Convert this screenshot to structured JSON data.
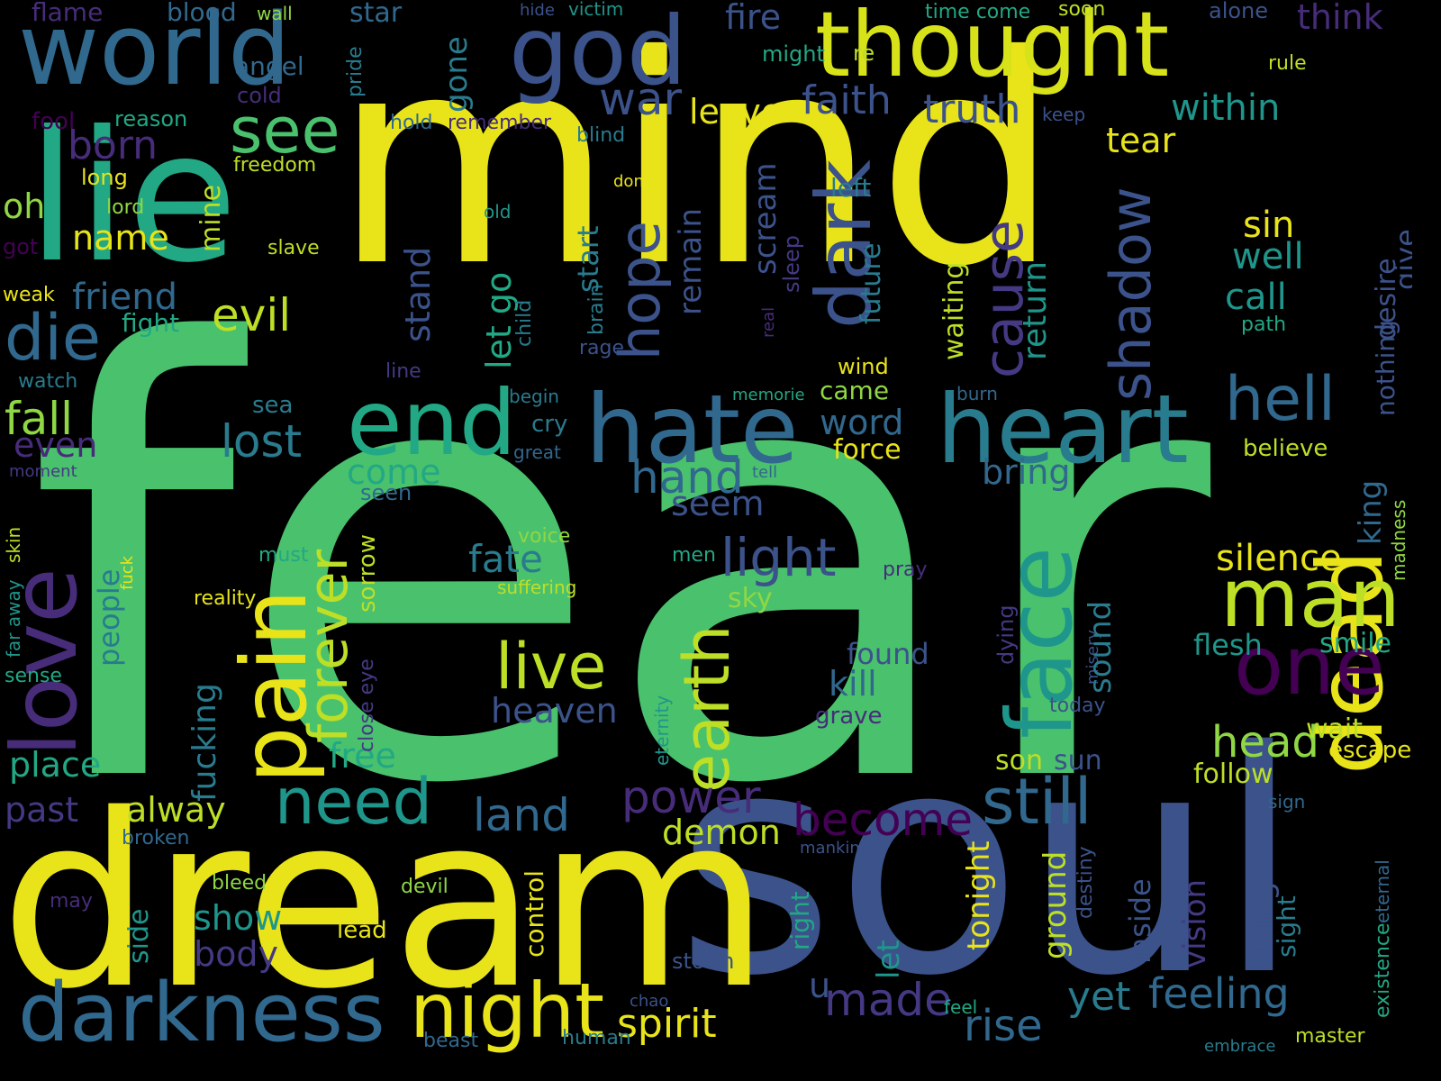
{
  "palette": {
    "background": "#000000",
    "yellow": "#e8e419",
    "yellow_green": "#bddf26",
    "lime": "#8fd744",
    "green": "#4ac16d",
    "teal_green": "#22a884",
    "teal": "#1f968b",
    "cyan_blue": "#297b8e",
    "blue": "#31688e",
    "slate": "#3b528b",
    "indigo": "#443983",
    "violet": "#472c7a",
    "purple": "#440154"
  },
  "words": [
    {
      "text": "fear",
      "color": "#4ac16d"
    },
    {
      "text": "mind",
      "color": "#e8e419"
    },
    {
      "text": "soul",
      "color": "#3b528b"
    },
    {
      "text": "dream",
      "color": "#e8e419"
    },
    {
      "text": "lie",
      "color": "#22a884"
    },
    {
      "text": "world",
      "color": "#31688e"
    },
    {
      "text": "thought",
      "color": "#d8e219"
    },
    {
      "text": "god",
      "color": "#3b528b"
    },
    {
      "text": "hate",
      "color": "#31688e"
    },
    {
      "text": "heart",
      "color": "#297b8e"
    },
    {
      "text": "end",
      "color": "#22a884"
    },
    {
      "text": "dead",
      "color": "#e8e419"
    },
    {
      "text": "face",
      "color": "#1f968b"
    },
    {
      "text": "pain",
      "color": "#e8e419"
    },
    {
      "text": "love",
      "color": "#472c7a"
    },
    {
      "text": "darkness",
      "color": "#31688e"
    },
    {
      "text": "night",
      "color": "#e8e419"
    },
    {
      "text": "man",
      "color": "#bddf26"
    },
    {
      "text": "one",
      "color": "#440154"
    },
    {
      "text": "dark",
      "color": "#3b528b"
    },
    {
      "text": "die",
      "color": "#31688e"
    },
    {
      "text": "see",
      "color": "#4ac16d"
    },
    {
      "text": "hell",
      "color": "#31688e"
    },
    {
      "text": "need",
      "color": "#1f968b"
    },
    {
      "text": "still",
      "color": "#31688e"
    },
    {
      "text": "become",
      "color": "#440154"
    },
    {
      "text": "live",
      "color": "#bddf26"
    },
    {
      "text": "earth",
      "color": "#bddf26"
    },
    {
      "text": "forever",
      "color": "#bddf26"
    },
    {
      "text": "hope",
      "color": "#3b528b"
    },
    {
      "text": "shadow",
      "color": "#3b528b"
    },
    {
      "text": "cause",
      "color": "#443983"
    },
    {
      "text": "light",
      "color": "#3b528b"
    },
    {
      "text": "evil",
      "color": "#bddf26"
    },
    {
      "text": "fall",
      "color": "#8fd744"
    },
    {
      "text": "lost",
      "color": "#297b8e"
    },
    {
      "text": "hand",
      "color": "#31688e"
    },
    {
      "text": "power",
      "color": "#472c7a"
    },
    {
      "text": "land",
      "color": "#31688e"
    },
    {
      "text": "made",
      "color": "#443983"
    },
    {
      "text": "spirit",
      "color": "#e8e419"
    },
    {
      "text": "rise",
      "color": "#31688e"
    },
    {
      "text": "feeling",
      "color": "#31688e"
    },
    {
      "text": "yet",
      "color": "#297b8e"
    },
    {
      "text": "head",
      "color": "#8fd744"
    },
    {
      "text": "silence",
      "color": "#e8e419"
    },
    {
      "text": "truth",
      "color": "#3b528b"
    },
    {
      "text": "faith",
      "color": "#3b528b"
    },
    {
      "text": "war",
      "color": "#3b528b"
    },
    {
      "text": "within",
      "color": "#1f968b"
    },
    {
      "text": "leave",
      "color": "#e8e419"
    },
    {
      "text": "tear",
      "color": "#e8e419"
    },
    {
      "text": "sin",
      "color": "#e8e419"
    },
    {
      "text": "well",
      "color": "#1f968b"
    },
    {
      "text": "call",
      "color": "#1f968b"
    },
    {
      "text": "fire",
      "color": "#3b528b"
    },
    {
      "text": "think",
      "color": "#472c7a"
    },
    {
      "text": "born",
      "color": "#472c7a"
    },
    {
      "text": "name",
      "color": "#e8e419"
    },
    {
      "text": "friend",
      "color": "#31688e"
    },
    {
      "text": "oh",
      "color": "#8fd744"
    },
    {
      "text": "even",
      "color": "#472c7a"
    },
    {
      "text": "place",
      "color": "#22a884"
    },
    {
      "text": "past",
      "color": "#443983"
    },
    {
      "text": "alway",
      "color": "#bddf26"
    },
    {
      "text": "come",
      "color": "#22a884"
    },
    {
      "text": "bring",
      "color": "#31688e"
    },
    {
      "text": "word",
      "color": "#31688e"
    },
    {
      "text": "heaven",
      "color": "#3b528b"
    },
    {
      "text": "kill",
      "color": "#31688e"
    },
    {
      "text": "fate",
      "color": "#297b8e"
    },
    {
      "text": "seem",
      "color": "#3b528b"
    },
    {
      "text": "free",
      "color": "#22a884"
    },
    {
      "text": "demon",
      "color": "#bddf26"
    },
    {
      "text": "body",
      "color": "#443983"
    },
    {
      "text": "show",
      "color": "#1f968b"
    },
    {
      "text": "follow",
      "color": "#bddf26"
    },
    {
      "text": "flesh",
      "color": "#1f968b"
    },
    {
      "text": "smile",
      "color": "#22a884"
    },
    {
      "text": "wait",
      "color": "#bddf26"
    },
    {
      "text": "escape",
      "color": "#e8e419"
    },
    {
      "text": "sun",
      "color": "#3b528b"
    },
    {
      "text": "son",
      "color": "#bddf26"
    },
    {
      "text": "found",
      "color": "#3b528b"
    },
    {
      "text": "believe",
      "color": "#bddf26"
    },
    {
      "text": "force",
      "color": "#e8e419"
    },
    {
      "text": "came",
      "color": "#8fd744"
    },
    {
      "text": "wind",
      "color": "#e8e419"
    },
    {
      "text": "flame",
      "color": "#472c7a"
    },
    {
      "text": "blood",
      "color": "#31688e"
    },
    {
      "text": "wall",
      "color": "#8fd744"
    },
    {
      "text": "star",
      "color": "#31688e"
    },
    {
      "text": "hide",
      "color": "#3b528b"
    },
    {
      "text": "victim",
      "color": "#1f968b"
    },
    {
      "text": "time come",
      "color": "#22a884"
    },
    {
      "text": "soon",
      "color": "#bddf26"
    },
    {
      "text": "alone",
      "color": "#3b528b"
    },
    {
      "text": "angel",
      "color": "#31688e"
    },
    {
      "text": "cold",
      "color": "#472c7a"
    },
    {
      "text": "fool",
      "color": "#440154"
    },
    {
      "text": "reason",
      "color": "#22a884"
    },
    {
      "text": "might",
      "color": "#22a884"
    },
    {
      "text": "re",
      "color": "#bddf26"
    },
    {
      "text": "rule",
      "color": "#bddf26"
    },
    {
      "text": "keep",
      "color": "#3b528b"
    },
    {
      "text": "hold",
      "color": "#31688e"
    },
    {
      "text": "remember",
      "color": "#472c7a"
    },
    {
      "text": "blind",
      "color": "#297b8e"
    },
    {
      "text": "long",
      "color": "#e8e419"
    },
    {
      "text": "freedom",
      "color": "#bddf26"
    },
    {
      "text": "lord",
      "color": "#8fd744"
    },
    {
      "text": "got",
      "color": "#440154"
    },
    {
      "text": "slave",
      "color": "#bddf26"
    },
    {
      "text": "weak",
      "color": "#e8e419"
    },
    {
      "text": "done",
      "color": "#e8e419"
    },
    {
      "text": "left",
      "color": "#297b8e"
    },
    {
      "text": "old",
      "color": "#1f968b"
    },
    {
      "text": "fight",
      "color": "#22a884"
    },
    {
      "text": "watch",
      "color": "#297b8e"
    },
    {
      "text": "sea",
      "color": "#297b8e"
    },
    {
      "text": "moment",
      "color": "#443983"
    },
    {
      "text": "rage",
      "color": "#3b528b"
    },
    {
      "text": "line",
      "color": "#443983"
    },
    {
      "text": "begin",
      "color": "#297b8e"
    },
    {
      "text": "cry",
      "color": "#297b8e"
    },
    {
      "text": "great",
      "color": "#31688e"
    },
    {
      "text": "tell",
      "color": "#31688e"
    },
    {
      "text": "memorie",
      "color": "#22a884"
    },
    {
      "text": "burn",
      "color": "#31688e"
    },
    {
      "text": "path",
      "color": "#22a884"
    },
    {
      "text": "seen",
      "color": "#31688e"
    },
    {
      "text": "voice",
      "color": "#8fd744"
    },
    {
      "text": "must",
      "color": "#22a884"
    },
    {
      "text": "men",
      "color": "#22a884"
    },
    {
      "text": "pray",
      "color": "#472c7a"
    },
    {
      "text": "reality",
      "color": "#e8e419"
    },
    {
      "text": "suffering",
      "color": "#bddf26"
    },
    {
      "text": "sky",
      "color": "#8fd744"
    },
    {
      "text": "sense",
      "color": "#22a884"
    },
    {
      "text": "grave",
      "color": "#472c7a"
    },
    {
      "text": "today",
      "color": "#3b528b"
    },
    {
      "text": "broken",
      "color": "#31688e"
    },
    {
      "text": "sign",
      "color": "#31688e"
    },
    {
      "text": "mankind",
      "color": "#3b528b"
    },
    {
      "text": "bleed",
      "color": "#8fd744"
    },
    {
      "text": "devil",
      "color": "#8fd744"
    },
    {
      "text": "may",
      "color": "#472c7a"
    },
    {
      "text": "side",
      "color": "#1f968b"
    },
    {
      "text": "lead",
      "color": "#e8e419"
    },
    {
      "text": "storm",
      "color": "#3b528b"
    },
    {
      "text": "u",
      "color": "#3b528b"
    },
    {
      "text": "chao",
      "color": "#3b528b"
    },
    {
      "text": "feel",
      "color": "#22a884"
    },
    {
      "text": "beast",
      "color": "#31688e"
    },
    {
      "text": "human",
      "color": "#297b8e"
    },
    {
      "text": "embrace",
      "color": "#297b8e"
    },
    {
      "text": "master",
      "color": "#bddf26"
    },
    {
      "text": "gone",
      "color": "#297b8e"
    },
    {
      "text": "pride",
      "color": "#297b8e"
    },
    {
      "text": "mine",
      "color": "#bddf26"
    },
    {
      "text": "stand",
      "color": "#3b528b"
    },
    {
      "text": "let go",
      "color": "#22a884"
    },
    {
      "text": "child",
      "color": "#297b8e"
    },
    {
      "text": "brain",
      "color": "#297b8e"
    },
    {
      "text": "start",
      "color": "#297b8e"
    },
    {
      "text": "remain",
      "color": "#3b528b"
    },
    {
      "text": "scream",
      "color": "#3b528b"
    },
    {
      "text": "sleep",
      "color": "#443983"
    },
    {
      "text": "real",
      "color": "#472c7a"
    },
    {
      "text": "future",
      "color": "#297b8e"
    },
    {
      "text": "waiting",
      "color": "#bddf26"
    },
    {
      "text": "return",
      "color": "#1f968b"
    },
    {
      "text": "nothing",
      "color": "#3b528b"
    },
    {
      "text": "desire",
      "color": "#3b528b"
    },
    {
      "text": "give",
      "color": "#3b528b"
    },
    {
      "text": "king",
      "color": "#31688e"
    },
    {
      "text": "madness",
      "color": "#8fd744"
    },
    {
      "text": "people",
      "color": "#297b8e"
    },
    {
      "text": "fucking",
      "color": "#297b8e"
    },
    {
      "text": "sorrow",
      "color": "#bddf26"
    },
    {
      "text": "close eye",
      "color": "#443983"
    },
    {
      "text": "eternity",
      "color": "#1f968b"
    },
    {
      "text": "far away",
      "color": "#1f968b"
    },
    {
      "text": "skin",
      "color": "#bddf26"
    },
    {
      "text": "fuck",
      "color": "#e8e419"
    },
    {
      "text": "misery",
      "color": "#3b528b"
    },
    {
      "text": "dying",
      "color": "#443983"
    },
    {
      "text": "sound",
      "color": "#297b8e"
    },
    {
      "text": "right",
      "color": "#22a884"
    },
    {
      "text": "let",
      "color": "#1f968b"
    },
    {
      "text": "control",
      "color": "#e8e419"
    },
    {
      "text": "tonight",
      "color": "#e8e419"
    },
    {
      "text": "ground",
      "color": "#bddf26"
    },
    {
      "text": "destiny",
      "color": "#3b528b"
    },
    {
      "text": "inside",
      "color": "#3b528b"
    },
    {
      "text": "vision",
      "color": "#443983"
    },
    {
      "text": "living",
      "color": "#3b528b"
    },
    {
      "text": "sight",
      "color": "#297b8e"
    },
    {
      "text": "existence",
      "color": "#22a884"
    },
    {
      "text": "eternal",
      "color": "#31688e"
    }
  ]
}
